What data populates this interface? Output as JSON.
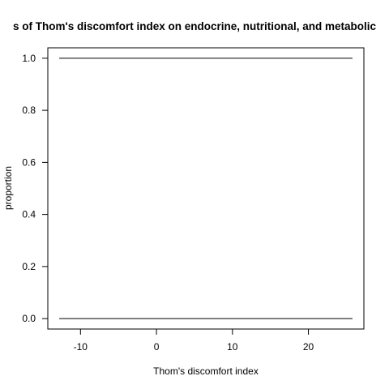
{
  "chart_data": {
    "type": "line",
    "title": "s of Thom's discomfort index on endocrine, nutritional, and metabolic",
    "xlabel": "Thom's discomfort index",
    "ylabel": "proportion",
    "xlim": [
      -14.3,
      27.3
    ],
    "ylim": [
      -0.04,
      1.04
    ],
    "x_ticks": [
      -10,
      0,
      10,
      20
    ],
    "x_tick_labels": [
      "-10",
      "0",
      "10",
      "20"
    ],
    "y_ticks": [
      0,
      0.2,
      0.4,
      0.6,
      0.8,
      1.0
    ],
    "y_tick_labels": [
      "0.0",
      "0.2",
      "0.4",
      "0.6",
      "0.8",
      "1.0"
    ],
    "grid": false,
    "series": [
      {
        "x": [
          -12.8,
          25.8
        ],
        "y": [
          1.0,
          1.0
        ]
      },
      {
        "x": [
          -12.8,
          25.8
        ],
        "y": [
          0.0,
          0.0
        ]
      }
    ]
  }
}
